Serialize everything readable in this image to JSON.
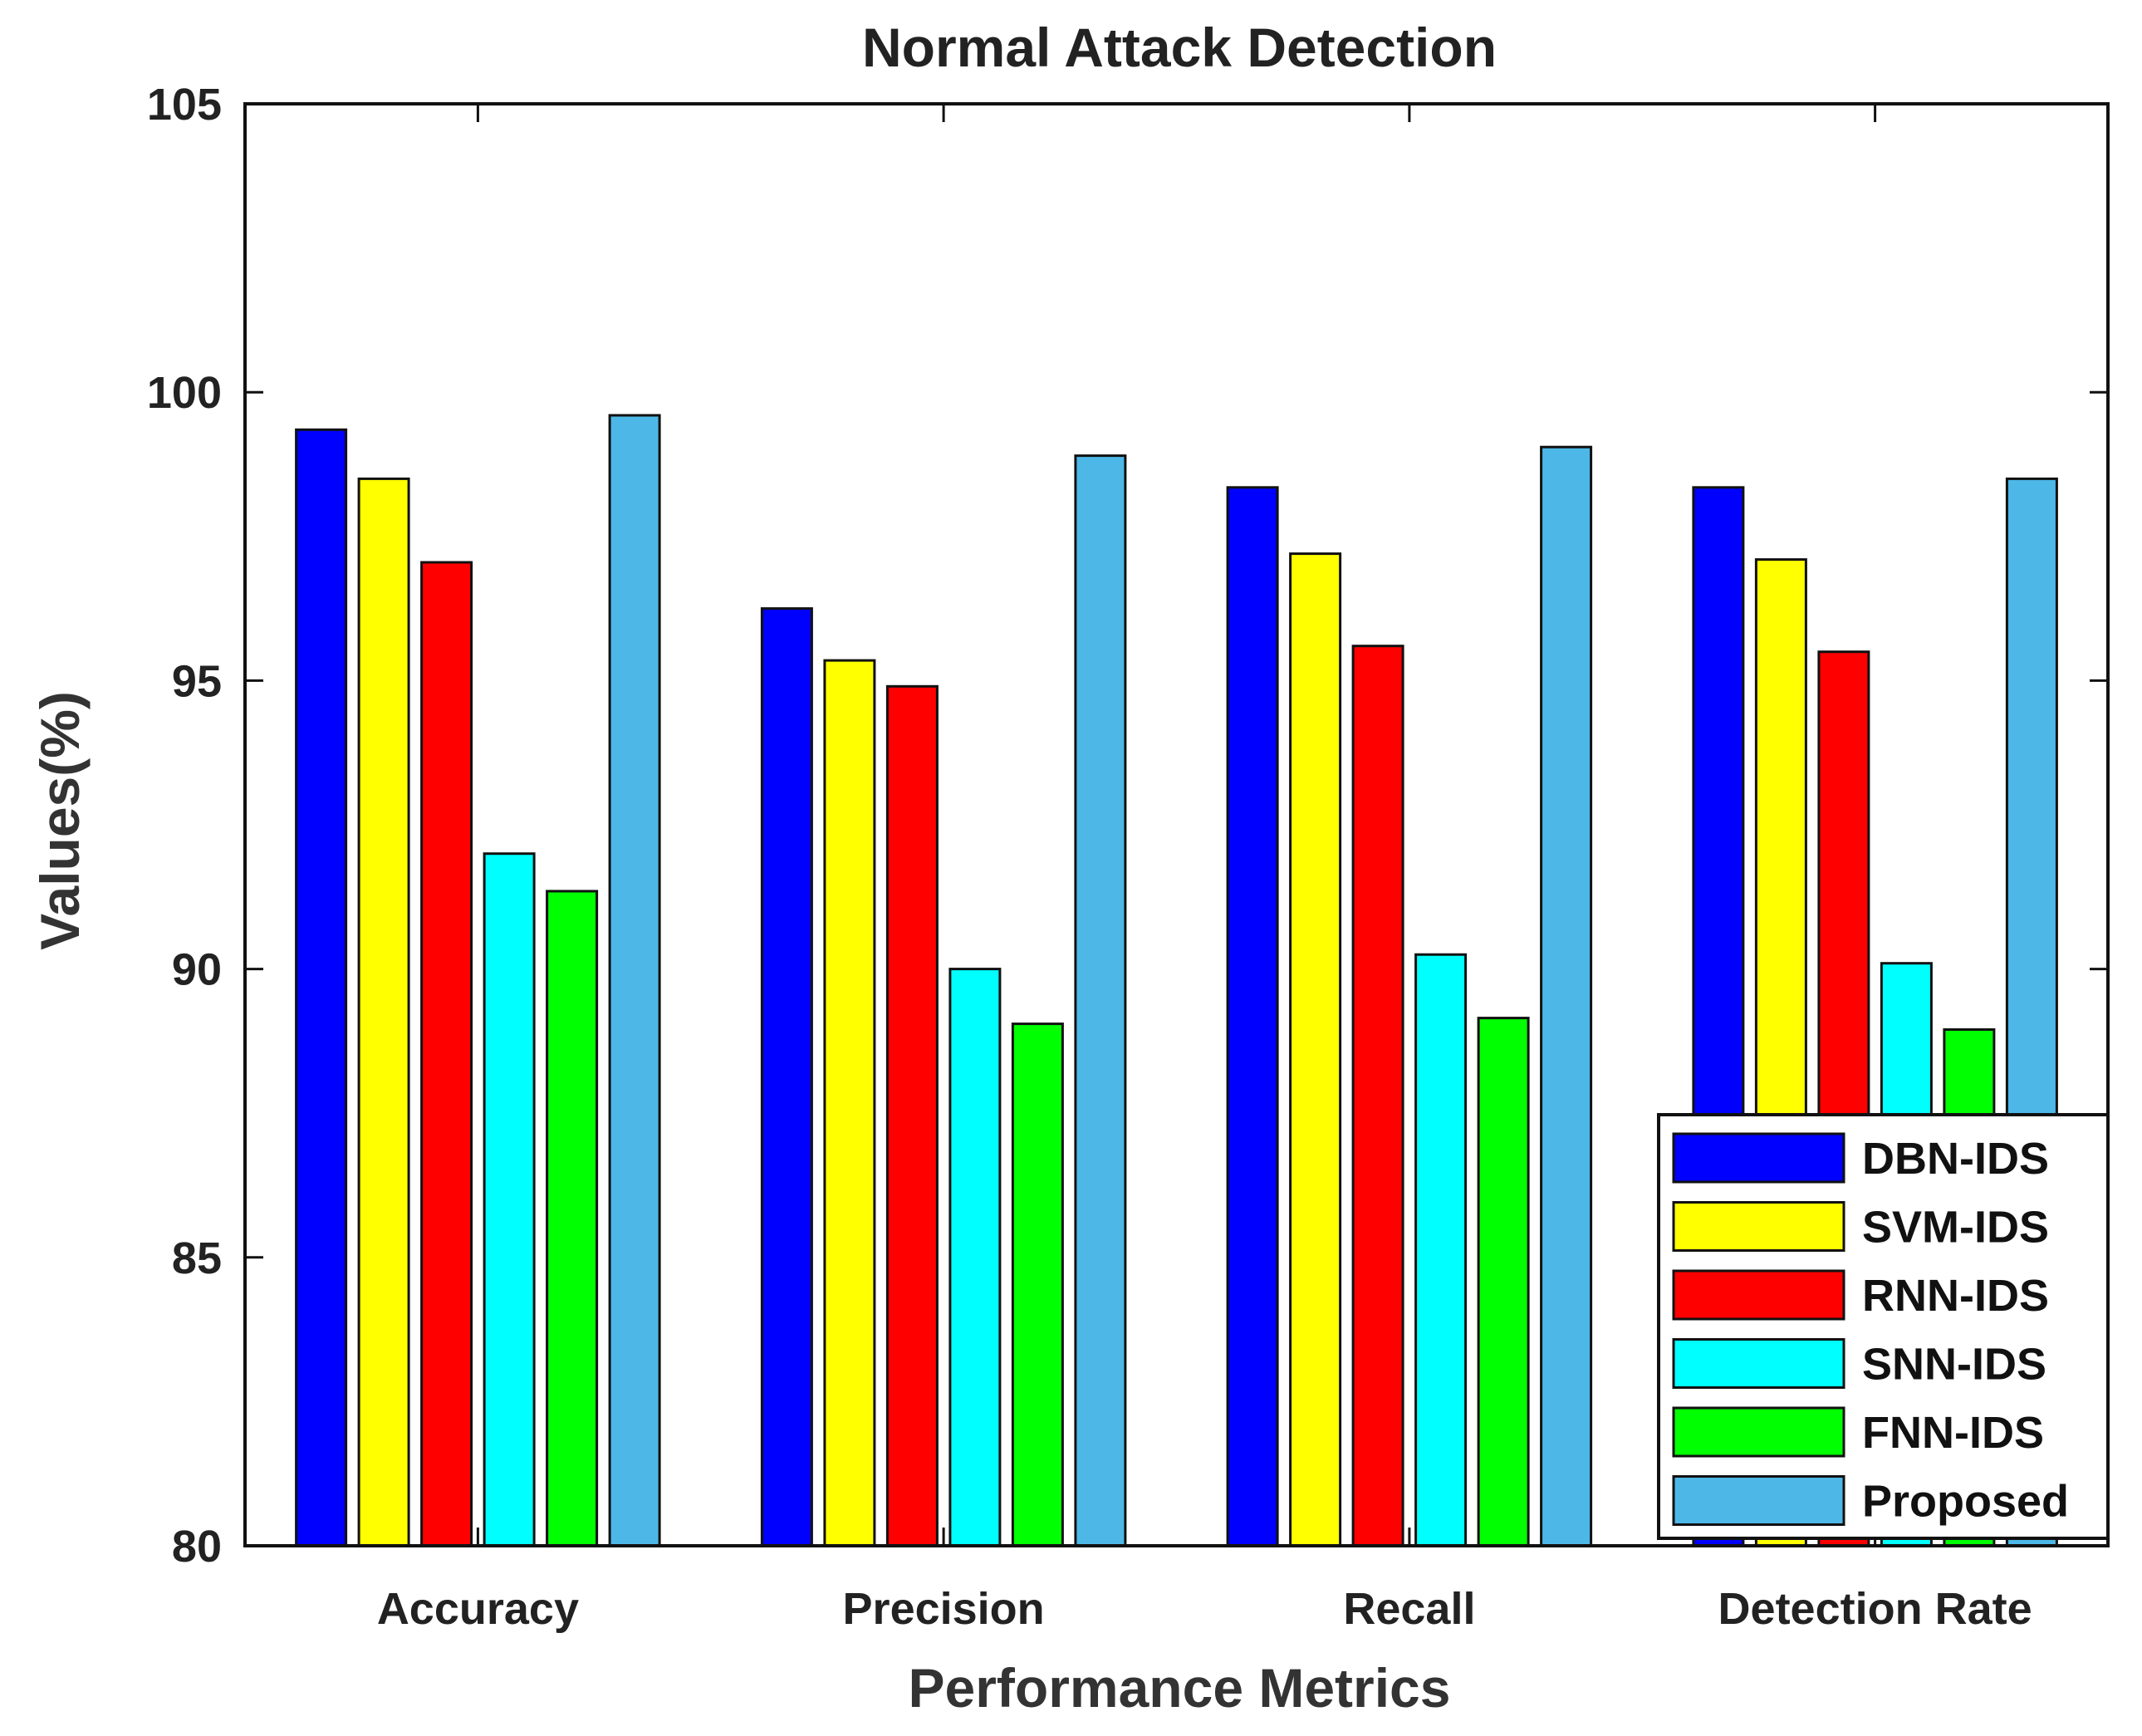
{
  "chart_data": {
    "type": "bar",
    "title": "Normal Attack Detection",
    "xlabel": "Performance Metrics",
    "ylabel": "Values(%)",
    "ylim": [
      80,
      105
    ],
    "yticks": [
      80,
      85,
      90,
      95,
      100,
      105
    ],
    "categories": [
      "Accuracy",
      "Precision",
      "Recall",
      "Detection Rate"
    ],
    "legend_position": "bottom-right",
    "series": [
      {
        "name": "DBN-IDS",
        "color": "#0000ff",
        "values": [
          99.35,
          96.25,
          98.35,
          98.35
        ]
      },
      {
        "name": "SVM-IDS",
        "color": "#ffff00",
        "values": [
          98.5,
          95.35,
          97.2,
          97.1
        ]
      },
      {
        "name": "RNN-IDS",
        "color": "#ff0000",
        "values": [
          97.05,
          94.9,
          95.6,
          95.5
        ]
      },
      {
        "name": "SNN-IDS",
        "color": "#00ffff",
        "values": [
          92.0,
          90.0,
          90.25,
          90.1
        ]
      },
      {
        "name": "FNN-IDS",
        "color": "#00ff00",
        "values": [
          91.35,
          89.05,
          89.15,
          88.95
        ]
      },
      {
        "name": "Proposed",
        "color": "#4db8e8",
        "values": [
          99.6,
          98.9,
          99.05,
          98.5
        ]
      }
    ]
  }
}
